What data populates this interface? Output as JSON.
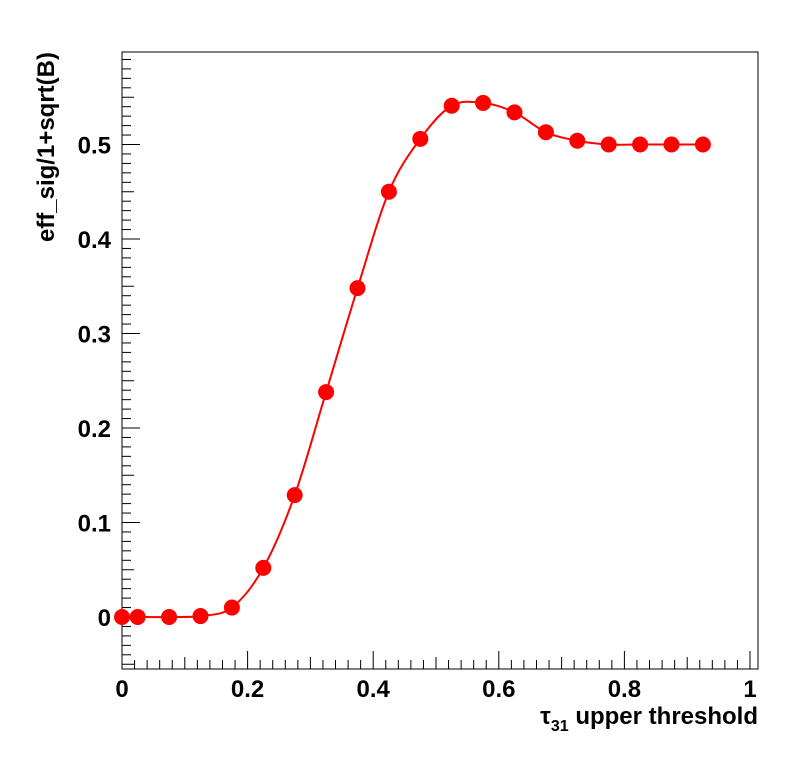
{
  "chart_data": {
    "type": "line",
    "title": "",
    "xlabel_symbol": "τ",
    "xlabel_subscript": "31",
    "xlabel_rest": " upper threshold",
    "ylabel": "eff_sig/1+sqrt(B)",
    "xlim": [
      0,
      1.01
    ],
    "ylim": [
      -0.055,
      0.6
    ],
    "x_ticks": [
      0,
      0.2,
      0.4,
      0.6,
      0.8,
      1
    ],
    "x_tick_labels": [
      "0",
      "0.2",
      "0.4",
      "0.6",
      "0.8",
      "1"
    ],
    "y_ticks": [
      0,
      0.1,
      0.2,
      0.3,
      0.4,
      0.5
    ],
    "y_tick_labels": [
      "0",
      "0.1",
      "0.2",
      "0.3",
      "0.4",
      "0.5"
    ],
    "grid": false,
    "legend": "none",
    "series": [
      {
        "color": "#ff0000",
        "marker": "circle",
        "x": [
          0.0,
          0.025,
          0.075,
          0.125,
          0.175,
          0.225,
          0.275,
          0.325,
          0.375,
          0.425,
          0.475,
          0.525,
          0.575,
          0.625,
          0.675,
          0.725,
          0.775,
          0.825,
          0.875,
          0.925
        ],
        "y": [
          0.0,
          0.0,
          0.0,
          0.001,
          0.01,
          0.052,
          0.129,
          0.238,
          0.348,
          0.45,
          0.506,
          0.541,
          0.544,
          0.534,
          0.513,
          0.504,
          0.5,
          0.5,
          0.5,
          0.5
        ]
      }
    ]
  }
}
